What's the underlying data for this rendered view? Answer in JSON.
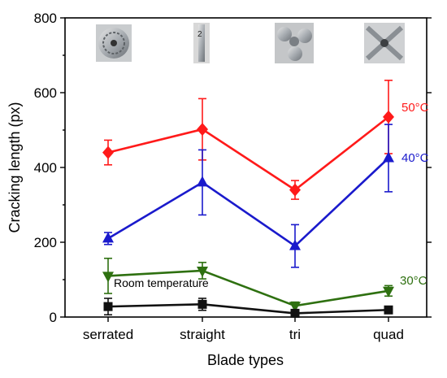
{
  "chart_data": {
    "type": "line",
    "categories": [
      "serrated",
      "straight",
      "tri",
      "quad"
    ],
    "xlabel": "Blade types",
    "ylabel": "Cracking length (px)",
    "ylim": [
      0,
      800
    ],
    "yticks": [
      0,
      200,
      400,
      600,
      800
    ],
    "grid": false,
    "legend": "labels placed at right end of each series",
    "series": [
      {
        "name": "50°C",
        "color": "#ff1a1a",
        "marker": "diamond",
        "values": [
          440,
          502,
          340,
          535
        ],
        "errors": [
          33,
          82,
          25,
          98
        ]
      },
      {
        "name": "40°C",
        "color": "#1a1acc",
        "marker": "triangle-up",
        "values": [
          210,
          360,
          190,
          425
        ],
        "errors": [
          16,
          87,
          57,
          90
        ]
      },
      {
        "name": "30°C",
        "color": "#2e7010",
        "marker": "triangle-down",
        "values": [
          110,
          124,
          30,
          70
        ],
        "errors": [
          47,
          22,
          10,
          14
        ]
      },
      {
        "name": "Room temperature",
        "color": "#111111",
        "marker": "square",
        "values": [
          28,
          34,
          10,
          19
        ],
        "errors": [
          22,
          16,
          6,
          4
        ]
      }
    ],
    "inset_images": [
      {
        "category": "serrated",
        "icon": "serrated-blade-photo"
      },
      {
        "category": "straight",
        "icon": "straight-blade-photo"
      },
      {
        "category": "tri",
        "icon": "tri-blade-photo"
      },
      {
        "category": "quad",
        "icon": "quad-blade-photo"
      }
    ]
  }
}
